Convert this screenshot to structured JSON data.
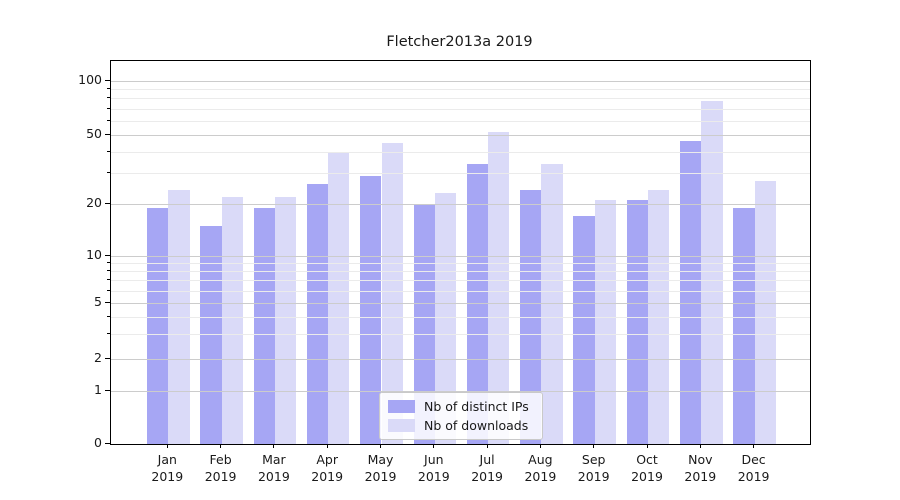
{
  "title": "Fletcher2013a 2019",
  "chart_data": {
    "type": "bar",
    "title": "Fletcher2013a 2019",
    "categories": [
      "Jan 2019",
      "Feb 2019",
      "Mar 2019",
      "Apr 2019",
      "May 2019",
      "Jun 2019",
      "Jul 2019",
      "Aug 2019",
      "Sep 2019",
      "Oct 2019",
      "Nov 2019",
      "Dec 2019"
    ],
    "series": [
      {
        "name": "Nb of distinct IPs",
        "color": "#a6a6f4",
        "values": [
          19,
          15,
          19,
          26,
          29,
          20,
          34,
          24,
          17,
          21,
          46,
          19
        ]
      },
      {
        "name": "Nb of downloads",
        "color": "#dadaf8",
        "values": [
          24,
          22,
          22,
          40,
          45,
          23,
          52,
          34,
          21,
          24,
          77,
          27
        ]
      }
    ],
    "xlabel": "",
    "ylabel": "",
    "yscale": "symlog",
    "ylim": [
      0,
      130
    ],
    "y_major_ticks": [
      0,
      1,
      2,
      5,
      10,
      20,
      50,
      100
    ],
    "y_minor_ticks": [
      3,
      4,
      6,
      7,
      8,
      9,
      30,
      40,
      60,
      70,
      80,
      90
    ],
    "y_scale_anchors": {
      "values": [
        0,
        1,
        2,
        5,
        10,
        20,
        50,
        100
      ],
      "fractions": [
        0,
        0.147,
        0.235,
        0.388,
        0.518,
        0.661,
        0.852,
        1.0
      ]
    },
    "grid": "horizontal major+minor",
    "legend_position": "lower center"
  },
  "colors": {
    "grid_major": "#cccccc",
    "grid_minor": "#ebebeb",
    "axis": "#000000",
    "text": "#1a1a1a"
  }
}
